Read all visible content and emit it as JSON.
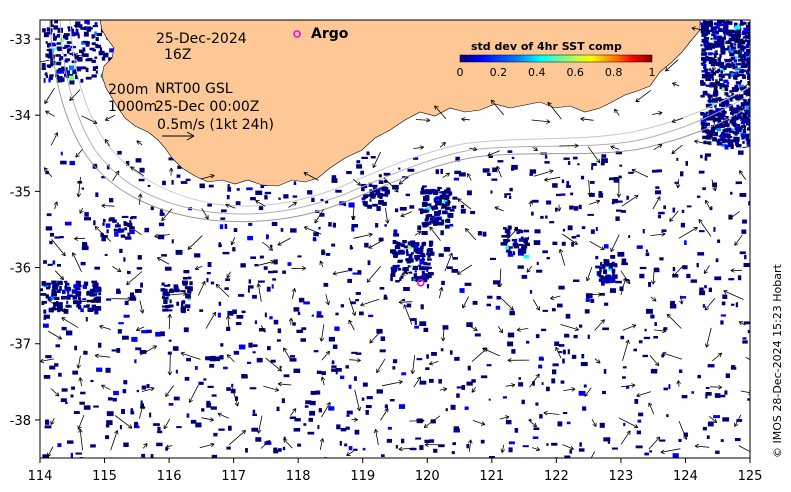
{
  "map": {
    "date_line": "25-Dec-2024",
    "hour_line": "16Z",
    "argo_label": "Argo",
    "contour_label_200": "200m",
    "contour_label_1000": "1000m",
    "product_label": "NRT00 GSL",
    "vector_time": "25-Dec 00:00Z",
    "scale_label": "0.5m/s (1kt 24h)",
    "credit": "© IMOS 28-Dec-2024 15:23 Hobart",
    "land_color": "#fdc895",
    "argo_color": "#e600e6",
    "axis": {
      "lon_ticks": [
        "114",
        "115",
        "116",
        "117",
        "118",
        "119",
        "120",
        "121",
        "122",
        "123",
        "124",
        "125"
      ],
      "lat_ticks": [
        "-33",
        "-34",
        "-35",
        "-36",
        "-37",
        "-38"
      ]
    },
    "legend": {
      "title": "std dev of 4hr SST comp",
      "ticks": [
        "0",
        "0.2",
        "0.4",
        "0.6",
        "0.8",
        "1"
      ],
      "colormap": [
        "#00007f",
        "#0000ff",
        "#007fff",
        "#00ffff",
        "#7fff7f",
        "#ffff00",
        "#ff7f00",
        "#ff0000",
        "#7f0000"
      ]
    },
    "argo_float_positions": [
      {
        "lon": 119.9,
        "lat": -36.2
      }
    ]
  }
}
